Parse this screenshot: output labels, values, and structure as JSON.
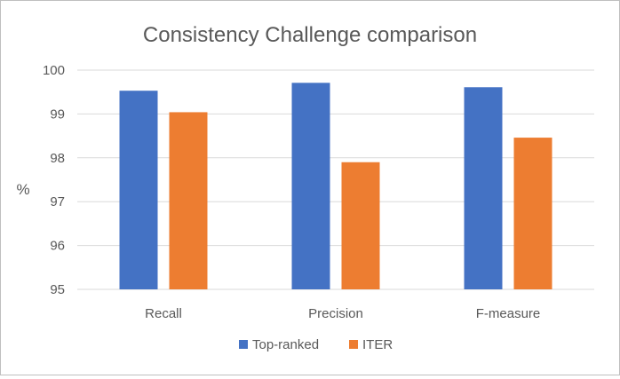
{
  "chart_data": {
    "type": "bar",
    "title": "Consistency Challenge comparison",
    "xlabel": "",
    "ylabel": "%",
    "categories": [
      "Recall",
      "Precision",
      "F-measure"
    ],
    "series": [
      {
        "name": "Top-ranked",
        "values": [
          99.53,
          99.71,
          99.61
        ],
        "color": "#4472c4"
      },
      {
        "name": "ITER",
        "values": [
          99.04,
          97.9,
          98.46
        ],
        "color": "#ed7d31"
      }
    ],
    "ylim": [
      95,
      100
    ],
    "yticks": [
      "95",
      "96",
      "97",
      "98",
      "99",
      "100"
    ],
    "grid": true,
    "legend": "bottom"
  }
}
